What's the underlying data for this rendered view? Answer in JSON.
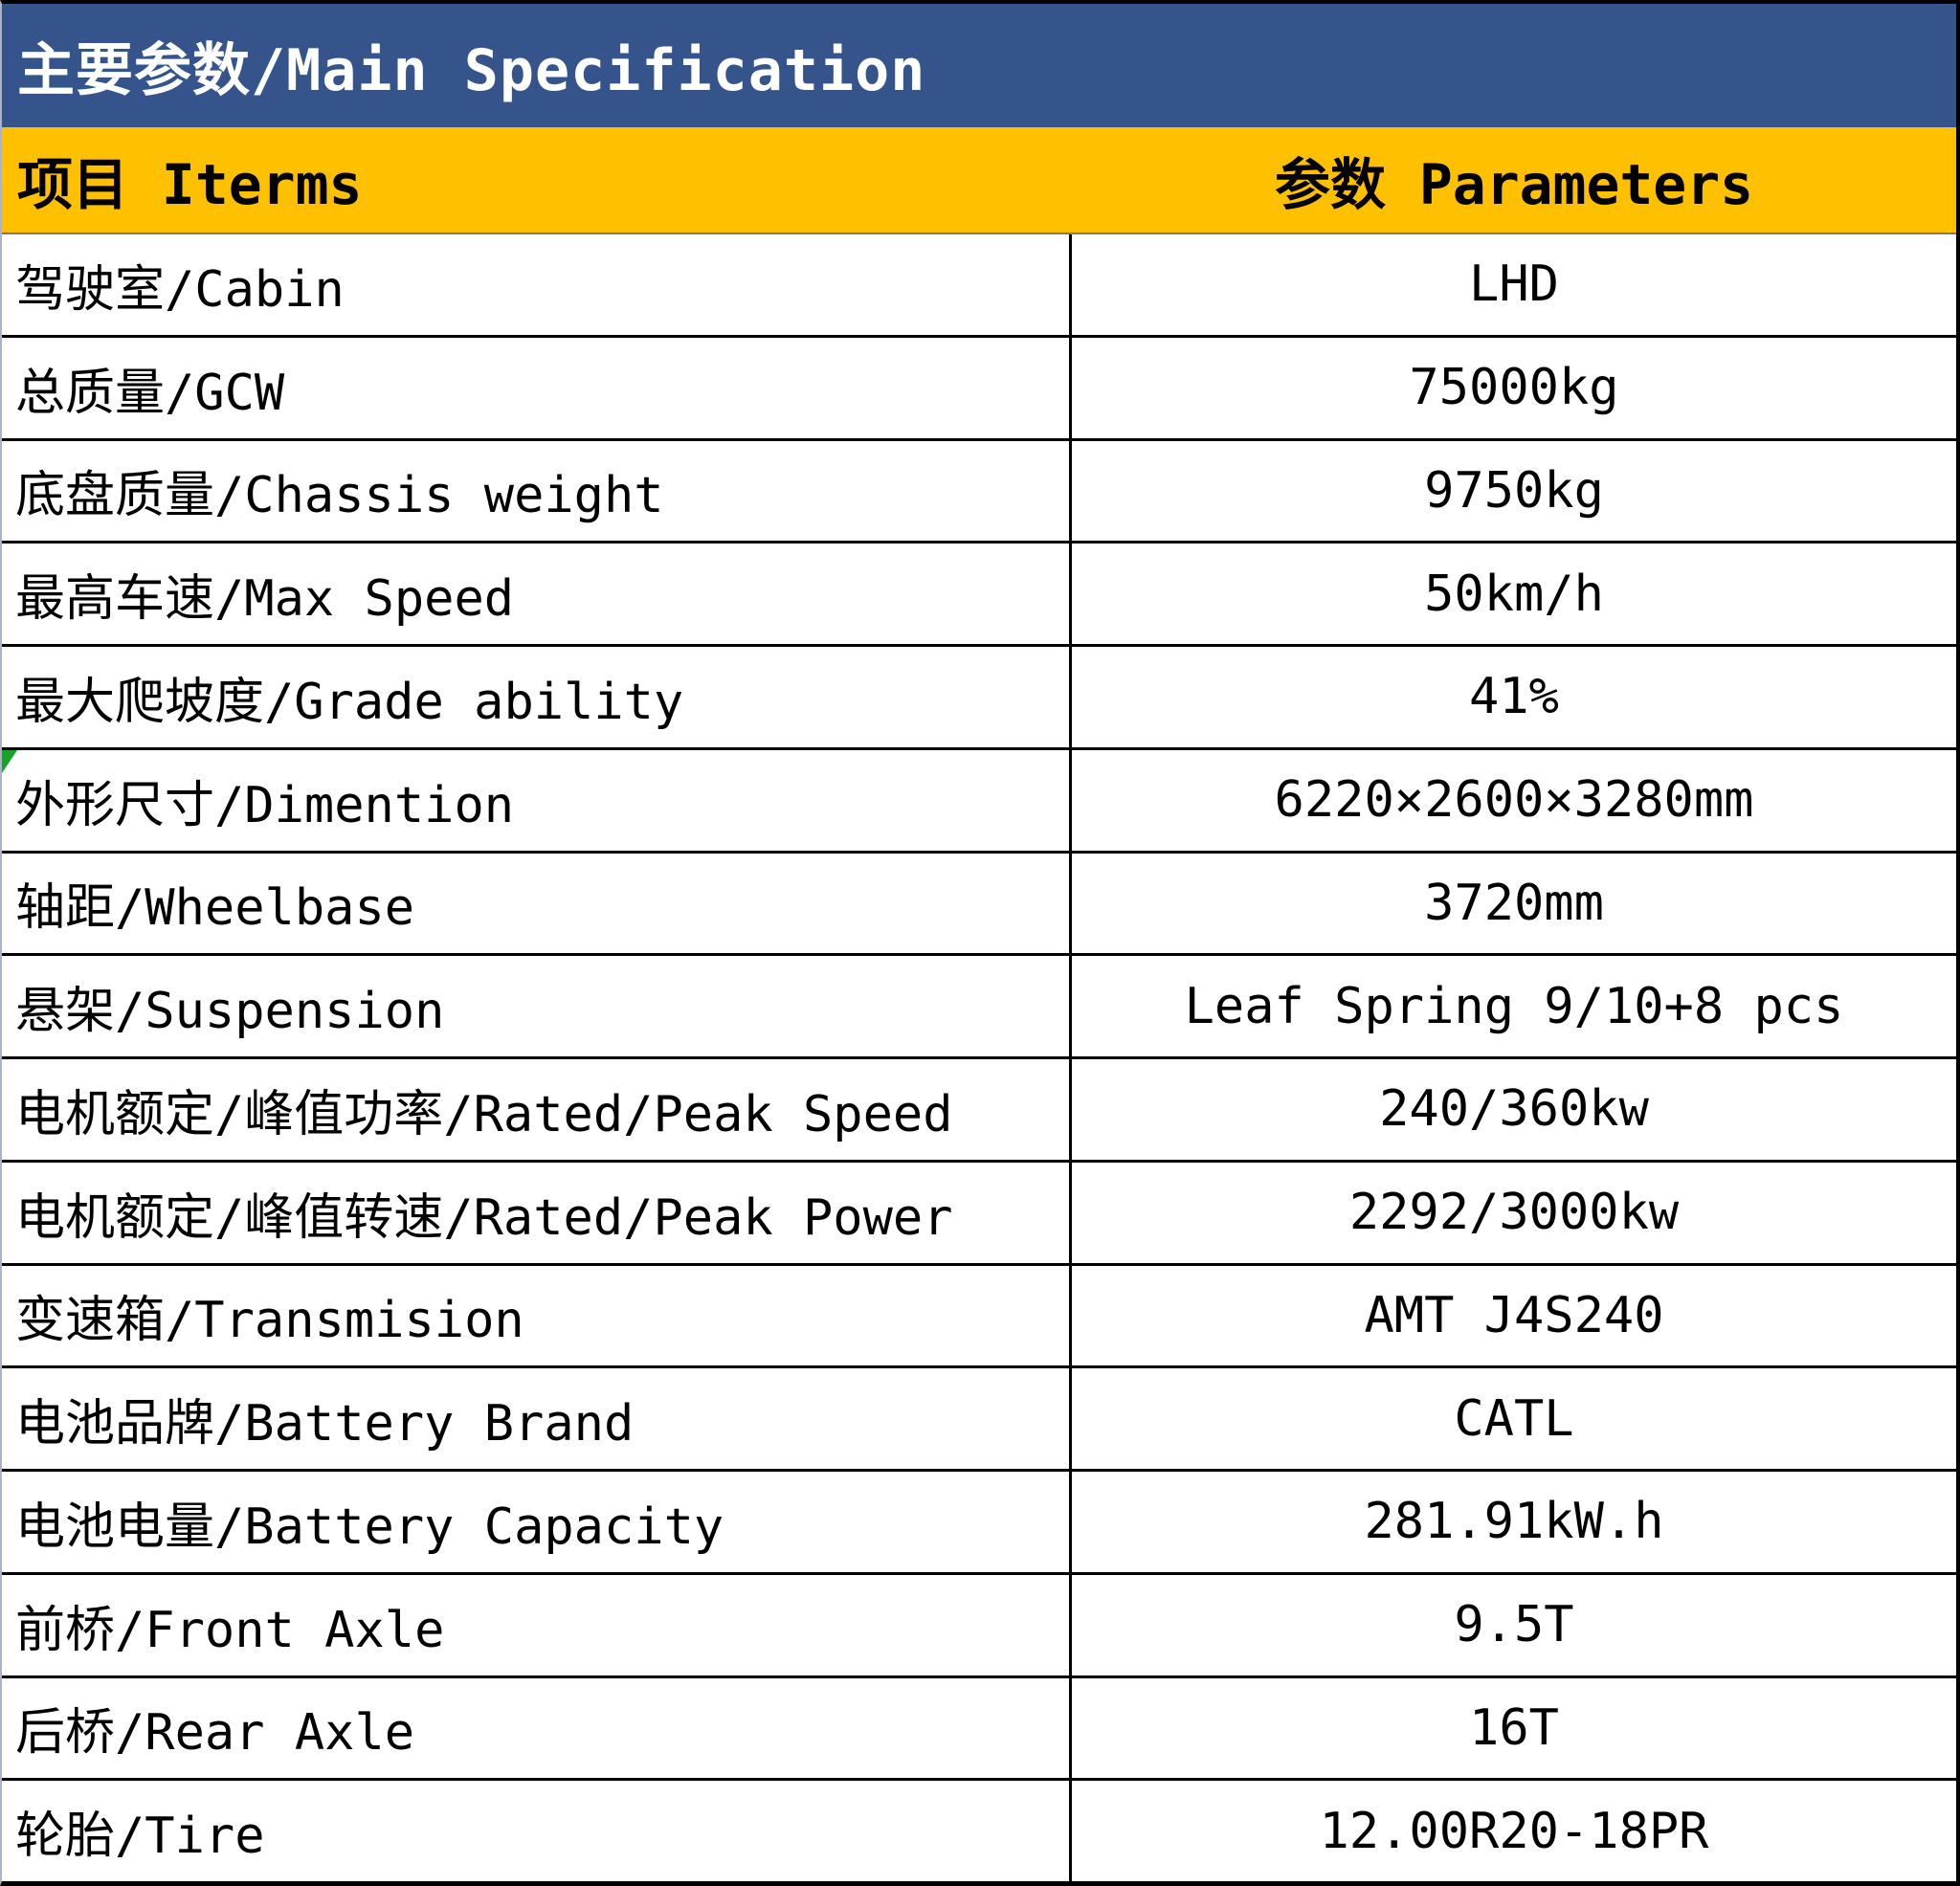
{
  "title": "主要参数/Main Specification",
  "header": {
    "items_label": "项目 Iterms",
    "params_label": "参数 Parameters"
  },
  "rows": [
    {
      "label": "驾驶室/Cabin",
      "value": "LHD"
    },
    {
      "label": "总质量/GCW",
      "value": "75000kg"
    },
    {
      "label": "底盘质量/Chassis weight",
      "value": "9750kg"
    },
    {
      "label": "最高车速/Max Speed",
      "value": "50km/h"
    },
    {
      "label": "最大爬坡度/Grade ability",
      "value": "41%"
    },
    {
      "label": "外形尺寸/Dimention",
      "value": "6220×2600×3280mm"
    },
    {
      "label": "轴距/Wheelbase",
      "value": "3720mm"
    },
    {
      "label": "悬架/Suspension",
      "value": "Leaf Spring 9/10+8 pcs"
    },
    {
      "label": "电机额定/峰值功率/Rated/Peak Speed",
      "value": "240/360kw"
    },
    {
      "label": "电机额定/峰值转速/Rated/Peak Power",
      "value": "2292/3000kw"
    },
    {
      "label": "变速箱/Transmision",
      "value": "AMT J4S240"
    },
    {
      "label": "电池品牌/Battery Brand",
      "value": "CATL"
    },
    {
      "label": "电池电量/Battery Capacity",
      "value": "281.91kW.h"
    },
    {
      "label": "前桥/Front Axle",
      "value": "9.5T"
    },
    {
      "label": "后桥/Rear Axle",
      "value": "16T"
    },
    {
      "label": "轮胎/Tire",
      "value": "12.00R20-18PR"
    }
  ],
  "flag": {
    "row_index": 5
  },
  "colors": {
    "header_blue": "#35548C",
    "header_yellow": "#FFC000",
    "border_black": "#000000",
    "flag_green": "#18A12B"
  }
}
